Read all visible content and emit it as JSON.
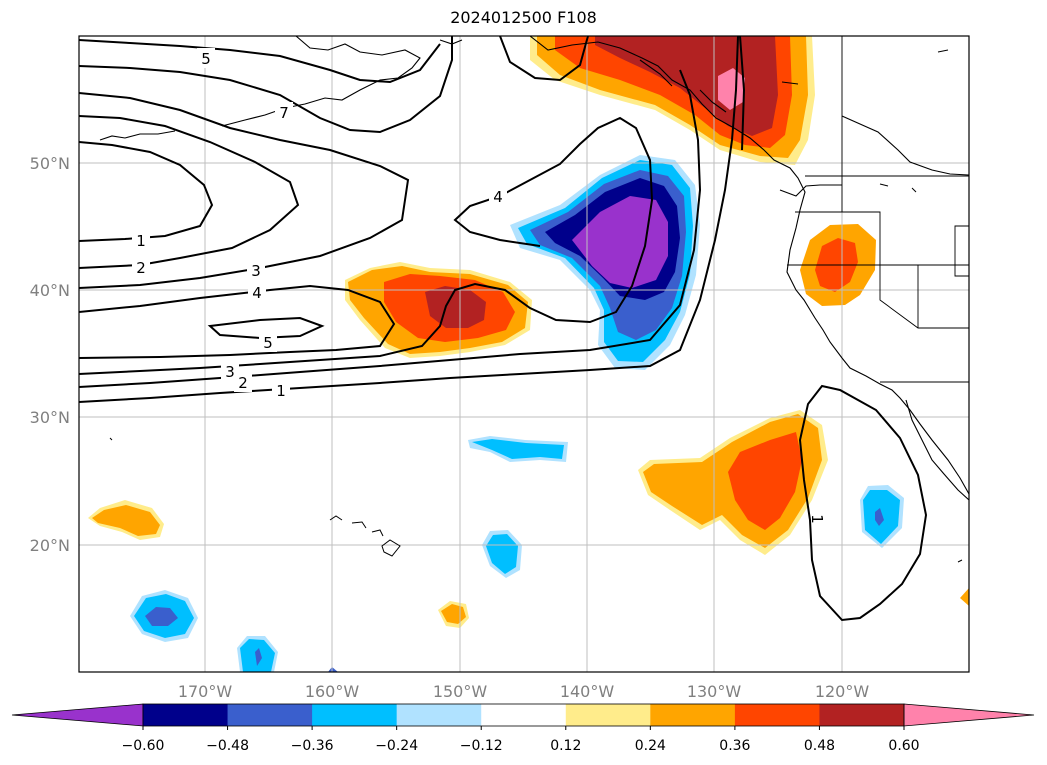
{
  "title": "2024012500 F108",
  "map": {
    "projection": "PlateCarree",
    "lon_range": [
      -180,
      -110
    ],
    "lat_range": [
      10,
      60
    ],
    "lon_ticks": [
      {
        "lon": -170,
        "label": "170°W"
      },
      {
        "lon": -160,
        "label": "160°W"
      },
      {
        "lon": -150,
        "label": "150°W"
      },
      {
        "lon": -140,
        "label": "140°W"
      },
      {
        "lon": -130,
        "label": "130°W"
      },
      {
        "lon": -120,
        "label": "120°W"
      }
    ],
    "lat_ticks": [
      {
        "lat": 20,
        "label": "20°N"
      },
      {
        "lat": 30,
        "label": "30°N"
      },
      {
        "lat": 40,
        "label": "40°N"
      },
      {
        "lat": 50,
        "label": "50°N"
      }
    ],
    "gridlines": true
  },
  "colorbar": {
    "orientation": "horizontal",
    "extend": "both",
    "levels": [
      -0.72,
      -0.6,
      -0.48,
      -0.36,
      -0.24,
      -0.12,
      0.12,
      0.24,
      0.36,
      0.48,
      0.6,
      0.72
    ],
    "colors": [
      "#9932cc",
      "#00008b",
      "#3a5fcd",
      "#00bfff",
      "#b0e2ff",
      "#ffffff",
      "#ffec8b",
      "#ffa500",
      "#ff4500",
      "#b22222",
      "#ff82ab"
    ],
    "under_color": "#9932cc",
    "over_color": "#ff82ab",
    "tick_labels": [
      "−0.60",
      "−0.48",
      "−0.36",
      "−0.24",
      "−0.12",
      "0.12",
      "0.24",
      "0.36",
      "0.48",
      "0.60"
    ]
  },
  "contour_labels": [
    "5",
    "7",
    "1",
    "2",
    "3",
    "4",
    "5",
    "3",
    "2",
    "1",
    "4",
    "1"
  ]
}
